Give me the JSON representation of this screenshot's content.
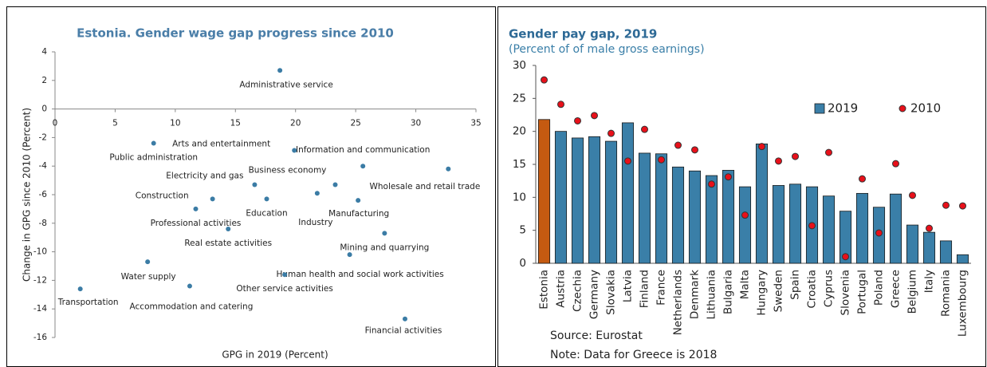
{
  "chart_data": [
    {
      "type": "scatter",
      "title": "Estonia. Gender wage gap progress since 2010",
      "x_label": "GPG in 2019 (Percent)",
      "y_label": "Change in GPG since 2010 (Percent)",
      "labels": [
        "Administrative service",
        "Public administration",
        "Arts and entertainment",
        "Information and communication",
        "Wholesale and retail trade",
        "Electricity and gas",
        "Business economy",
        "Industry",
        "Construction",
        "Education",
        "Manufacturing",
        "Professional activities",
        "Real estate activities",
        "Mining and quarrying",
        "Human health and social work activities",
        "Water supply",
        "Other service activities",
        "Accommodation and catering",
        "Transportation",
        "Financial activities"
      ],
      "x": [
        18.7,
        8.2,
        19.9,
        25.6,
        32.7,
        16.6,
        23.3,
        21.8,
        13.1,
        17.6,
        25.2,
        11.7,
        14.4,
        27.4,
        24.5,
        7.7,
        19.1,
        11.2,
        2.1,
        29.1
      ],
      "y": [
        2.7,
        -2.4,
        -2.9,
        -4.0,
        -4.2,
        -5.3,
        -5.3,
        -5.9,
        -6.3,
        -6.3,
        -6.4,
        -7.0,
        -8.4,
        -8.7,
        -10.2,
        -10.7,
        -11.6,
        -12.4,
        -12.6,
        -14.7
      ],
      "color": "#3b7ca5",
      "xlim": [
        0,
        35
      ],
      "xticks": [
        0,
        5,
        10,
        15,
        20,
        25,
        30,
        35
      ],
      "ylim": [
        -16,
        4
      ],
      "yticks": [
        -16,
        -14,
        -12,
        -10,
        -8,
        -6,
        -4,
        -2,
        0,
        2,
        4
      ],
      "grid": false
    },
    {
      "type": "bar",
      "title": "Gender pay gap, 2019",
      "subtitle": "(Percent of of male gross earnings)",
      "categories": [
        "Estonia",
        "Austria",
        "Czechia",
        "Germany",
        "Slovakia",
        "Latvia",
        "Finland",
        "France",
        "Netherlands",
        "Denmark",
        "Lithuania",
        "Bulgaria",
        "Malta",
        "Hungary",
        "Sweden",
        "Spain",
        "Croatia",
        "Cyprus",
        "Slovenia",
        "Portugal",
        "Poland",
        "Greece",
        "Belgium",
        "Italy",
        "Romania",
        "Luxembourg"
      ],
      "series": [
        {
          "name": "2019",
          "mark": "bar",
          "color": "#3a7fa8",
          "colors": [
            "#c55a11",
            "#3a7fa8",
            "#3a7fa8",
            "#3a7fa8",
            "#3a7fa8",
            "#3a7fa8",
            "#3a7fa8",
            "#3a7fa8",
            "#3a7fa8",
            "#3a7fa8",
            "#3a7fa8",
            "#3a7fa8",
            "#3a7fa8",
            "#3a7fa8",
            "#3a7fa8",
            "#3a7fa8",
            "#3a7fa8",
            "#3a7fa8",
            "#3a7fa8",
            "#3a7fa8",
            "#3a7fa8",
            "#3a7fa8",
            "#3a7fa8",
            "#3a7fa8",
            "#3a7fa8",
            "#3a7fa8"
          ],
          "values": [
            21.8,
            20.0,
            19.0,
            19.2,
            18.5,
            21.3,
            16.7,
            16.6,
            14.6,
            14.0,
            13.3,
            14.1,
            11.6,
            18.1,
            11.8,
            12.0,
            11.6,
            10.2,
            7.9,
            10.6,
            8.5,
            10.5,
            5.8,
            4.7,
            3.4,
            1.3
          ]
        },
        {
          "name": "2010",
          "mark": "dot",
          "color": "#e8101a",
          "values": [
            27.8,
            24.1,
            21.6,
            22.4,
            19.7,
            15.5,
            20.3,
            15.7,
            17.9,
            17.2,
            12.0,
            13.1,
            7.3,
            17.7,
            15.5,
            16.2,
            5.7,
            16.8,
            1.0,
            12.8,
            4.6,
            15.1,
            10.3,
            5.3,
            8.8,
            8.7
          ]
        }
      ],
      "ylim": [
        0,
        30
      ],
      "yticks": [
        0,
        5,
        10,
        15,
        20,
        25,
        30
      ],
      "legend": "upper right",
      "grid": false,
      "notes": [
        "Source: Eurostat",
        "Note: Data for Greece is 2018"
      ]
    }
  ]
}
